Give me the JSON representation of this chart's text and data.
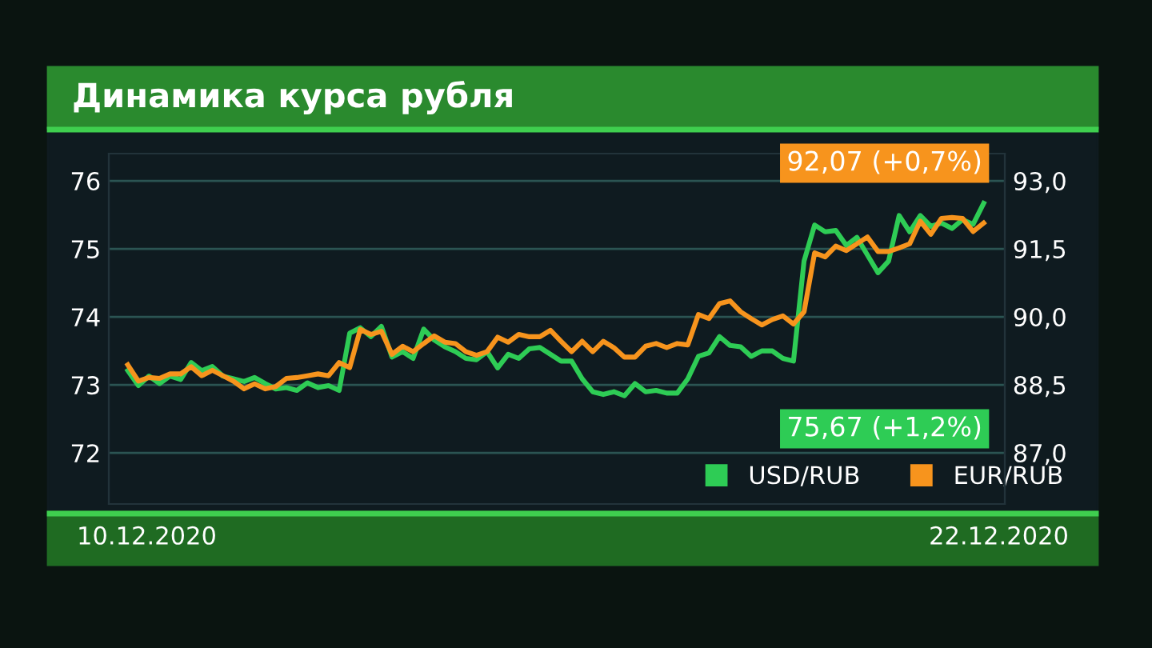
{
  "chart_data": {
    "type": "line",
    "title": "Динамика курса рубля",
    "categories": [
      null,
      null,
      null,
      null,
      null,
      null,
      null,
      null,
      null,
      null,
      null,
      null,
      null,
      null,
      null,
      null,
      null,
      null,
      null,
      null,
      null,
      null,
      null,
      null,
      null,
      null,
      null,
      null,
      null,
      null,
      null,
      null,
      null,
      null,
      null,
      null,
      null,
      null,
      null,
      null,
      null,
      null,
      null,
      null,
      null,
      null,
      null,
      null,
      null,
      null,
      null,
      null,
      null,
      null,
      null,
      null,
      null,
      null,
      null,
      null,
      null,
      null,
      null,
      null,
      null,
      null,
      null,
      null,
      null,
      null,
      null,
      null,
      null,
      null,
      null,
      null,
      null,
      null,
      null,
      null,
      null,
      null
    ],
    "series": [
      {
        "name": "USD/RUB",
        "color": "#2ecc55",
        "values": [
          73.21,
          72.99,
          73.13,
          73.02,
          73.13,
          73.08,
          73.33,
          73.21,
          73.27,
          73.13,
          73.09,
          73.05,
          73.11,
          73.02,
          72.94,
          72.96,
          72.92,
          73.03,
          72.96,
          72.99,
          72.92,
          73.76,
          73.84,
          73.71,
          73.86,
          73.41,
          73.49,
          73.39,
          73.82,
          73.66,
          73.56,
          73.49,
          73.39,
          73.37,
          73.49,
          73.25,
          73.45,
          73.39,
          73.53,
          73.55,
          73.45,
          73.35,
          73.35,
          73.09,
          72.9,
          72.86,
          72.9,
          72.84,
          73.02,
          72.9,
          72.92,
          72.88,
          72.88,
          73.09,
          73.42,
          73.47,
          73.71,
          73.58,
          73.56,
          73.42,
          73.5,
          73.5,
          73.39,
          73.35,
          74.82,
          75.35,
          75.25,
          75.27,
          75.05,
          75.17,
          74.91,
          74.65,
          74.82,
          75.49,
          75.25,
          75.49,
          75.33,
          75.38,
          75.3,
          75.43,
          75.36,
          75.67
        ]
      },
      {
        "name": "EUR/RUB",
        "color": "#f7941d",
        "axis": "y2",
        "values": [
          88.94,
          88.58,
          88.66,
          88.64,
          88.74,
          88.74,
          88.9,
          88.7,
          88.82,
          88.7,
          88.58,
          88.41,
          88.52,
          88.41,
          88.46,
          88.64,
          88.66,
          88.7,
          88.74,
          88.7,
          88.99,
          88.88,
          89.72,
          89.61,
          89.68,
          89.17,
          89.35,
          89.23,
          89.41,
          89.58,
          89.44,
          89.41,
          89.23,
          89.15,
          89.23,
          89.55,
          89.44,
          89.61,
          89.56,
          89.56,
          89.7,
          89.46,
          89.23,
          89.46,
          89.23,
          89.46,
          89.32,
          89.11,
          89.11,
          89.35,
          89.41,
          89.32,
          89.41,
          89.38,
          90.05,
          89.96,
          90.29,
          90.35,
          90.11,
          89.96,
          89.82,
          89.94,
          90.02,
          89.84,
          90.11,
          91.41,
          91.32,
          91.56,
          91.46,
          91.61,
          91.76,
          91.44,
          91.44,
          91.52,
          91.61,
          92.11,
          91.82,
          92.17,
          92.19,
          92.17,
          91.88,
          92.07
        ]
      }
    ],
    "ylim": [
      71.25,
      76.4
    ],
    "yticks": [
      72,
      73,
      74,
      75,
      76
    ],
    "y2lim": [
      85.87,
      93.6
    ],
    "y2ticks": [
      {
        "value": 87,
        "label": "87,0"
      },
      {
        "value": 88.5,
        "label": "88,5"
      },
      {
        "value": 90,
        "label": "90,0"
      },
      {
        "value": 91.5,
        "label": "91,5"
      },
      {
        "value": 93,
        "label": "93,0"
      }
    ],
    "grid": "y",
    "legend": "bottom right",
    "marker": "none",
    "line_style": "solid",
    "annotations": [
      "92,07 (+0,7%)",
      "75,67 (+1,2%)",
      "10.12.2020",
      "22.12.2020"
    ]
  }
}
